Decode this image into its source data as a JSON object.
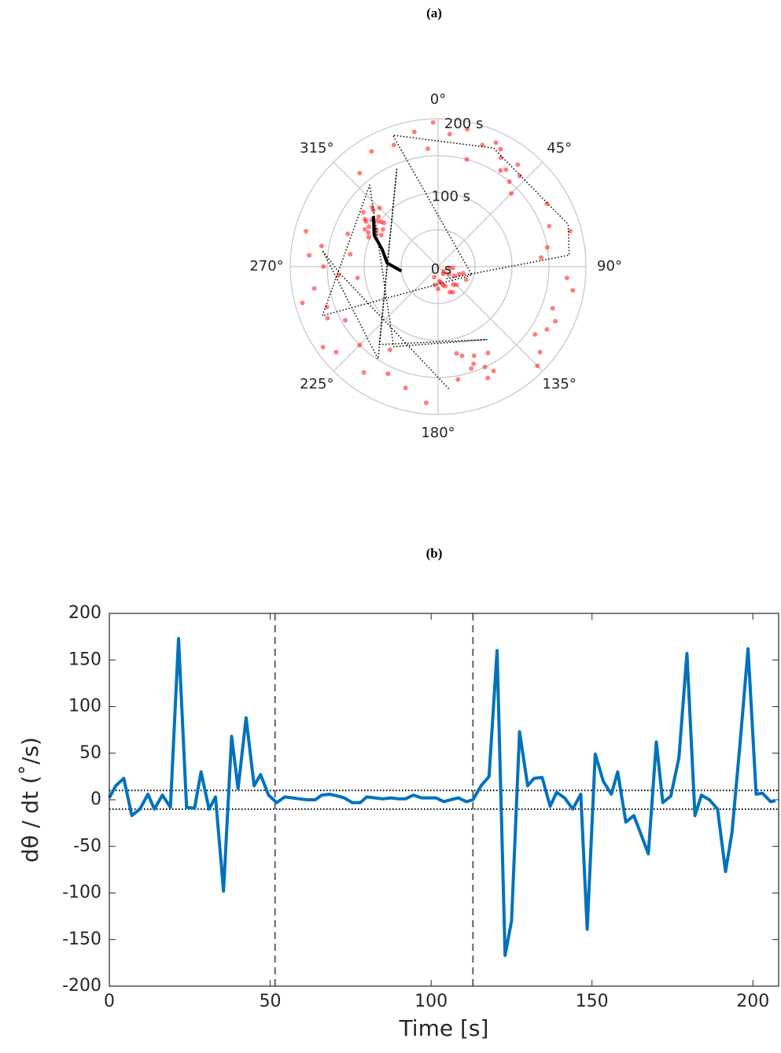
{
  "chart_data": [
    {
      "type": "polar_scatter",
      "title": "(a)",
      "theta_zero": "top",
      "theta_direction": "clockwise",
      "rlim": [
        0,
        200
      ],
      "rticks": [
        {
          "value": 0,
          "label": "0 s"
        },
        {
          "value": 50,
          "label": null
        },
        {
          "value": 100,
          "label": "100 s"
        },
        {
          "value": 150,
          "label": null
        },
        {
          "value": 200,
          "label": "200 s"
        }
      ],
      "thetaticks": [
        {
          "value": 0,
          "label": "0°"
        },
        {
          "value": 45,
          "label": "45°"
        },
        {
          "value": 90,
          "label": "90°"
        },
        {
          "value": 135,
          "label": "135°"
        },
        {
          "value": 180,
          "label": "180°"
        },
        {
          "value": 225,
          "label": "225°"
        },
        {
          "value": 270,
          "label": "270°"
        },
        {
          "value": 315,
          "label": "315°"
        }
      ],
      "points": {
        "color": "#ff0000",
        "theta": [
          300,
          305,
          310,
          298,
          302,
          308,
          312,
          296,
          304,
          306,
          300,
          315,
          299,
          303,
          309,
          293,
          301,
          307,
          311,
          297,
          95,
          110,
          120,
          135,
          150,
          160,
          170,
          180,
          100,
          125,
          140,
          155,
          165,
          130,
          115,
          105,
          145,
          175,
          190,
          200,
          150,
          155,
          160,
          165,
          170,
          158,
          152,
          162,
          168,
          156,
          30,
          35,
          40,
          45,
          38,
          33,
          42,
          28,
          5,
          12,
          20,
          60,
          70,
          80,
          95,
          100,
          110,
          120,
          130,
          135,
          185,
          195,
          205,
          215,
          225,
          230,
          240,
          250,
          255,
          260,
          265,
          270,
          275,
          280,
          285,
          290,
          320,
          330,
          340,
          350,
          355,
          358,
          15,
          25,
          75,
          85,
          115,
          125,
          210,
          235,
          245,
          262,
          278
        ],
        "r": [
          100,
          110,
          105,
          95,
          115,
          98,
          120,
          105,
          90,
          125,
          108,
          112,
          88,
          118,
          94,
          102,
          97,
          103,
          116,
          111,
          20,
          30,
          25,
          35,
          40,
          28,
          22,
          30,
          15,
          18,
          32,
          38,
          26,
          10,
          42,
          35,
          12,
          20,
          25,
          15,
          135,
          150,
          140,
          125,
          155,
          130,
          160,
          145,
          120,
          165,
          170,
          160,
          150,
          140,
          175,
          155,
          165,
          180,
          180,
          190,
          175,
          170,
          160,
          150,
          175,
          185,
          165,
          170,
          180,
          190,
          185,
          170,
          160,
          175,
          150,
          180,
          145,
          160,
          190,
          170,
          135,
          155,
          175,
          160,
          185,
          130,
          165,
          180,
          175,
          185,
          160,
          195,
          150,
          185,
          185,
          140,
          175,
          160,
          130,
          190,
          165,
          110,
          120
        ]
      },
      "paths": [
        {
          "color": "#000000",
          "style": "dotted",
          "theta": [
            175,
            267,
            278,
            213,
            337,
            217,
            146,
            209,
            320,
            247,
            104,
            341,
            25,
            72,
            85,
            153
          ],
          "r": [
            166,
            135,
            158,
            149,
            143,
            132,
            119,
            124,
            144,
            170,
            47,
            188,
            177,
            185,
            178,
            19
          ]
        },
        {
          "color": "#000000",
          "style": "solid",
          "theta": [
            308,
            296,
            287,
            274,
            263
          ],
          "r": [
            111,
            96,
            79,
            69,
            50
          ]
        }
      ]
    },
    {
      "type": "line",
      "title": "(b)",
      "x_label": "Time [s]",
      "y_label": "dθ / dt (˚/s)",
      "xlim": [
        0,
        208
      ],
      "ylim": [
        -200,
        200
      ],
      "xticks": [
        0,
        50,
        100,
        150,
        200
      ],
      "yticks": [
        -200,
        -150,
        -100,
        -50,
        0,
        50,
        100,
        150,
        200
      ],
      "hlines": [
        10,
        -10
      ],
      "vlines": [
        51.5,
        113
      ],
      "x": [
        0,
        2,
        4.5,
        7,
        9.5,
        12,
        14,
        16.5,
        19,
        21.5,
        24,
        26.5,
        28.5,
        31,
        33,
        35.5,
        38,
        40,
        42.5,
        45,
        47,
        49.5,
        52,
        54.5,
        57,
        59,
        61.5,
        64,
        66,
        68.5,
        71,
        73,
        75.5,
        78,
        80,
        82.5,
        85,
        87.5,
        90,
        92,
        94.5,
        97,
        99,
        101.5,
        104,
        106,
        108.5,
        111,
        113,
        115.5,
        118,
        120.5,
        123,
        125,
        127.5,
        130,
        132,
        134.5,
        137,
        139,
        141.5,
        144,
        146.5,
        148.5,
        151,
        153.5,
        156,
        158,
        160.5,
        163,
        165,
        167.5,
        170,
        172,
        174.5,
        177,
        179.5,
        182,
        184,
        186.5,
        189,
        191.5,
        193.5,
        196,
        198.5,
        201,
        203,
        205.5,
        207
      ],
      "series": [
        {
          "color": "#0072bd",
          "values": [
            2,
            15,
            23,
            -17,
            -10,
            6,
            -10,
            5,
            -8,
            173,
            -8,
            -9,
            30,
            -10,
            3,
            -98,
            68,
            12,
            88,
            15,
            27,
            5,
            -3,
            3,
            2,
            1,
            0,
            0,
            5,
            6,
            4,
            2,
            -3,
            -3,
            3,
            2,
            1,
            2,
            1,
            1,
            5,
            2,
            2,
            2,
            -2,
            0,
            2,
            -2,
            0,
            15,
            25,
            160,
            -167,
            -130,
            73,
            15,
            23,
            24,
            -7,
            8,
            2,
            -10,
            6,
            -139,
            49,
            20,
            6,
            30,
            -24,
            -17,
            -35,
            -58,
            62,
            -3,
            4,
            45,
            157,
            -17,
            5,
            0,
            -10,
            -77,
            -35,
            60,
            162,
            6,
            7,
            -2,
            -1
          ]
        }
      ]
    }
  ]
}
